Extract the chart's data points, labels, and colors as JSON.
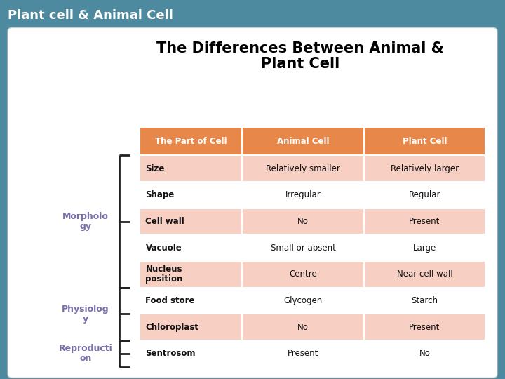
{
  "title_bar_text": "Plant cell & Animal Cell",
  "title_bar_bg": "#111111",
  "title_bar_color": "#ffffff",
  "main_title": "The Differences Between Animal &\nPlant Cell",
  "main_title_color": "#000000",
  "background_color": "#4d8aa0",
  "card_bg": "#ffffff",
  "header_bg": "#e8874a",
  "header_color": "#ffffff",
  "row_bg_salmon": "#f7cfc3",
  "row_bg_white": "#ffffff",
  "text_color": "#111111",
  "columns": [
    "The Part of Cell",
    "Animal Cell",
    "Plant Cell"
  ],
  "rows": [
    [
      "Size",
      "Relatively smaller",
      "Relatively larger"
    ],
    [
      "Shape",
      "Irregular",
      "Regular"
    ],
    [
      "Cell wall",
      "No",
      "Present"
    ],
    [
      "Vacuole",
      "Small or absent",
      "Large"
    ],
    [
      "Nucleus\nposition",
      "Centre",
      "Near cell wall"
    ],
    [
      "Food store",
      "Glycogen",
      "Starch"
    ],
    [
      "Chloroplast",
      "No",
      "Present"
    ],
    [
      "Sentrosom",
      "Present",
      "No"
    ]
  ],
  "groups": [
    {
      "text": "Morpholo\ngy",
      "start": 0,
      "end": 4
    },
    {
      "text": "Physiolog\ny",
      "start": 5,
      "end": 6
    },
    {
      "text": "Reproducti\non",
      "start": 7,
      "end": 7
    }
  ],
  "group_color": "#7b6faa",
  "bracket_color": "#222222",
  "fig_w": 7.2,
  "fig_h": 5.4
}
